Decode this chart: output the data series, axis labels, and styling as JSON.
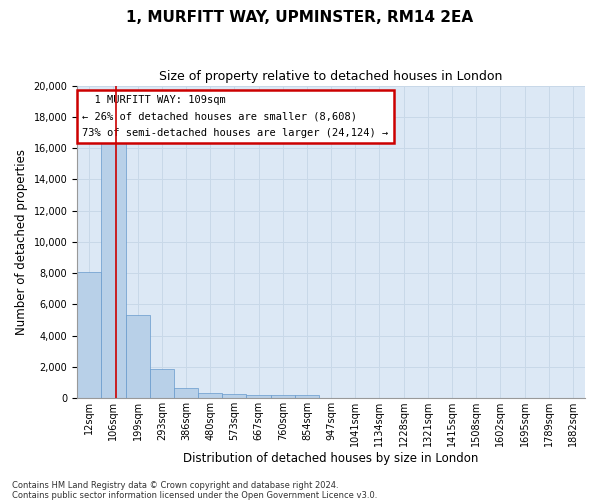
{
  "title_line1": "1, MURFITT WAY, UPMINSTER, RM14 2EA",
  "title_line2": "Size of property relative to detached houses in London",
  "xlabel": "Distribution of detached houses by size in London",
  "ylabel": "Number of detached properties",
  "bar_color": "#b8d0e8",
  "bar_edge_color": "#6699cc",
  "grid_color": "#c8d8e8",
  "background_color": "#dce8f5",
  "annotation_box_color": "#cc0000",
  "property_line_color": "#cc0000",
  "categories": [
    "12sqm",
    "106sqm",
    "199sqm",
    "293sqm",
    "386sqm",
    "480sqm",
    "573sqm",
    "667sqm",
    "760sqm",
    "854sqm",
    "947sqm",
    "1041sqm",
    "1134sqm",
    "1228sqm",
    "1321sqm",
    "1415sqm",
    "1508sqm",
    "1602sqm",
    "1695sqm",
    "1789sqm",
    "1882sqm"
  ],
  "bar_values": [
    8100,
    16600,
    5300,
    1850,
    650,
    350,
    270,
    200,
    200,
    190,
    0,
    0,
    0,
    0,
    0,
    0,
    0,
    0,
    0,
    0,
    0
  ],
  "ylim": [
    0,
    20000
  ],
  "yticks": [
    0,
    2000,
    4000,
    6000,
    8000,
    10000,
    12000,
    14000,
    16000,
    18000,
    20000
  ],
  "annotation_text_line1": "  1 MURFITT WAY: 109sqm",
  "annotation_text_line2": "← 26% of detached houses are smaller (8,608)",
  "annotation_text_line3": "73% of semi-detached houses are larger (24,124) →",
  "footer_line1": "Contains HM Land Registry data © Crown copyright and database right 2024.",
  "footer_line2": "Contains public sector information licensed under the Open Government Licence v3.0.",
  "title_fontsize": 11,
  "subtitle_fontsize": 9,
  "axis_label_fontsize": 8.5,
  "tick_fontsize": 7,
  "annotation_fontsize": 7.5,
  "footer_fontsize": 6
}
